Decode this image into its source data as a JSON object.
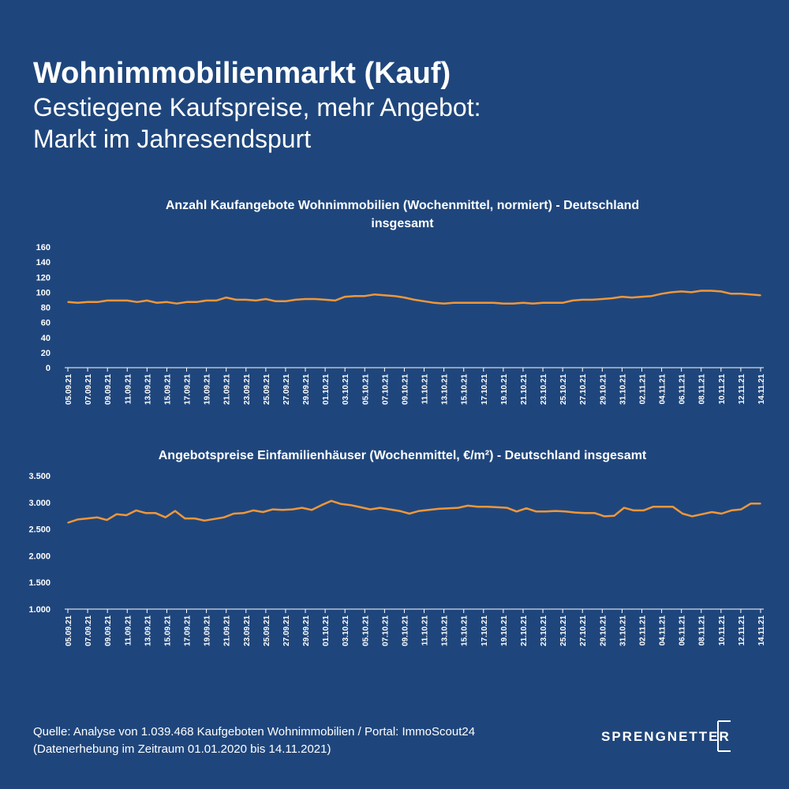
{
  "header": {
    "title": "Wohnimmobilienmarkt (Kauf)",
    "subtitle_line1": "Gestiegene Kaufspreise, mehr Angebot:",
    "subtitle_line2": "Markt im Jahresendspurt"
  },
  "footer": {
    "line1": "Quelle: Analyse von 1.039.468 Kaufgeboten Wohnimmobilien / Portal: ImmoScout24",
    "line2": "(Datenerhebung im Zeitraum  01.01.2020 bis  14.11.2021)"
  },
  "logo": {
    "text": "SPRENGNETTER"
  },
  "colors": {
    "background": "#1f467c",
    "line": "#f0973a",
    "text": "#ffffff"
  },
  "chart_data": [
    {
      "type": "line",
      "title_line1": "Anzahl Kaufangebote Wohnimmobilien (Wochenmittel, normiert) - Deutschland",
      "title_line2": "insgesamt",
      "xlabel": "",
      "ylabel": "",
      "ylim": [
        0,
        160
      ],
      "yticks": [
        0,
        20,
        40,
        60,
        80,
        100,
        120,
        140,
        160
      ],
      "ytick_labels": [
        "0",
        "20",
        "40",
        "60",
        "80",
        "100",
        "120",
        "140",
        "160"
      ],
      "x_start": "05.09.21",
      "x_end": "14.11.21",
      "xtick_labels": [
        "05.09.21",
        "07.09.21",
        "09.09.21",
        "11.09.21",
        "13.09.21",
        "15.09.21",
        "17.09.21",
        "19.09.21",
        "21.09.21",
        "23.09.21",
        "25.09.21",
        "27.09.21",
        "29.09.21",
        "01.10.21",
        "03.10.21",
        "05.10.21",
        "07.10.21",
        "09.10.21",
        "11.10.21",
        "13.10.21",
        "15.10.21",
        "17.10.21",
        "19.10.21",
        "21.10.21",
        "23.10.21",
        "25.10.21",
        "27.10.21",
        "29.10.21",
        "31.10.21",
        "02.11.21",
        "04.11.21",
        "06.11.21",
        "08.11.21",
        "10.11.21",
        "12.11.21",
        "14.11.21"
      ],
      "grid": false,
      "series": [
        {
          "color": "#f0973a",
          "values": [
            87,
            86,
            87,
            87,
            89,
            89,
            89,
            87,
            89,
            86,
            87,
            85,
            87,
            87,
            89,
            89,
            93,
            90,
            90,
            89,
            91,
            88,
            88,
            90,
            91,
            91,
            90,
            89,
            94,
            95,
            95,
            97,
            96,
            95,
            93,
            90,
            88,
            86,
            85,
            86,
            86,
            86,
            86,
            86,
            85,
            85,
            86,
            85,
            86,
            86,
            86,
            89,
            90,
            90,
            91,
            92,
            94,
            93,
            94,
            95,
            98,
            100,
            101,
            100,
            102,
            102,
            101,
            98,
            98,
            97,
            96
          ]
        }
      ]
    },
    {
      "type": "line",
      "title_line1": "Angebotspreise Einfamilienhäuser (Wochenmittel, €/m²) - Deutschland insgesamt",
      "xlabel": "",
      "ylabel": "",
      "ylim": [
        1000,
        3500
      ],
      "yticks": [
        1000,
        1500,
        2000,
        2500,
        3000,
        3500
      ],
      "ytick_labels": [
        "1.000",
        "1.500",
        "2.000",
        "2.500",
        "3.000",
        "3.500"
      ],
      "x_start": "05.09.21",
      "x_end": "14.11.21",
      "xtick_labels": [
        "05.09.21",
        "07.09.21",
        "09.09.21",
        "11.09.21",
        "13.09.21",
        "15.09.21",
        "17.09.21",
        "19.09.21",
        "21.09.21",
        "23.09.21",
        "25.09.21",
        "27.09.21",
        "29.09.21",
        "01.10.21",
        "03.10.21",
        "05.10.21",
        "07.10.21",
        "09.10.21",
        "11.10.21",
        "13.10.21",
        "15.10.21",
        "17.10.21",
        "19.10.21",
        "21.10.21",
        "23.10.21",
        "25.10.21",
        "27.10.21",
        "29.10.21",
        "31.10.21",
        "02.11.21",
        "04.11.21",
        "06.11.21",
        "08.11.21",
        "10.11.21",
        "12.11.21",
        "14.11.21"
      ],
      "grid": false,
      "series": [
        {
          "color": "#f0973a",
          "values": [
            2620,
            2680,
            2700,
            2720,
            2670,
            2780,
            2760,
            2850,
            2800,
            2800,
            2720,
            2840,
            2700,
            2700,
            2660,
            2690,
            2720,
            2790,
            2800,
            2850,
            2820,
            2870,
            2860,
            2870,
            2900,
            2860,
            2950,
            3030,
            2970,
            2950,
            2910,
            2870,
            2900,
            2870,
            2840,
            2790,
            2840,
            2860,
            2880,
            2890,
            2900,
            2940,
            2920,
            2920,
            2910,
            2900,
            2830,
            2890,
            2830,
            2830,
            2840,
            2830,
            2810,
            2800,
            2800,
            2740,
            2750,
            2900,
            2850,
            2850,
            2920,
            2920,
            2920,
            2790,
            2740,
            2780,
            2820,
            2790,
            2850,
            2870,
            2980,
            2980
          ]
        }
      ]
    }
  ]
}
